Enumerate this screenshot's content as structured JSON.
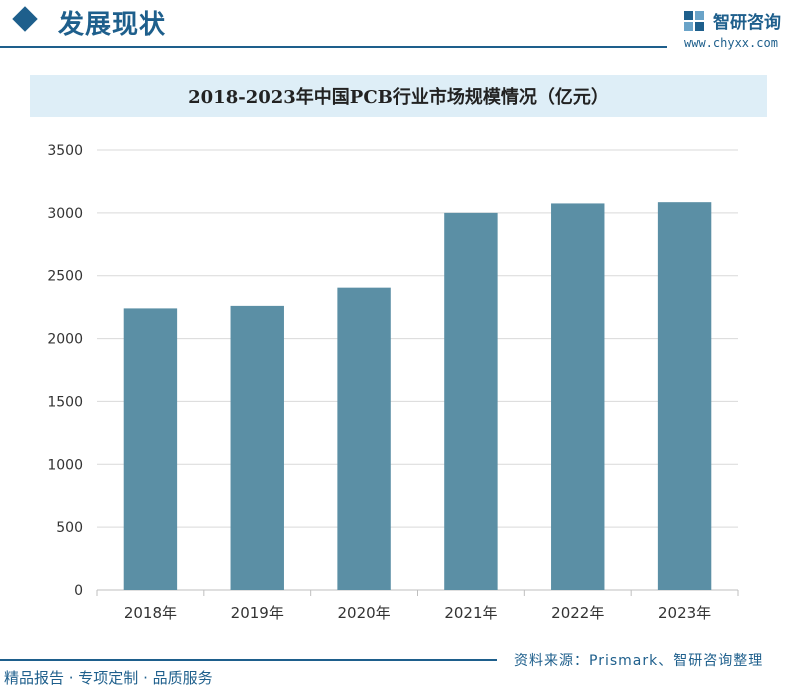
{
  "header": {
    "section_title": "发展现状",
    "brand_name": "智研咨询",
    "brand_url": "www.chyxx.com"
  },
  "chart_data": {
    "type": "bar",
    "title": "2018-2023年中国PCB行业市场规模情况（亿元）",
    "categories": [
      "2018年",
      "2019年",
      "2020年",
      "2021年",
      "2022年",
      "2023年"
    ],
    "values": [
      2240,
      2260,
      2405,
      3000,
      3075,
      3085
    ],
    "ylim": [
      0,
      3500
    ],
    "yticks": [
      0,
      500,
      1000,
      1500,
      2000,
      2500,
      3000,
      3500
    ],
    "grid": true,
    "bar_color": "#5b8fa5"
  },
  "footer": {
    "left": "精品报告 · 专项定制 · 品质服务",
    "source": "资料来源：Prismark、智研咨询整理"
  },
  "colors": {
    "brand": "#1e5f8c",
    "title_band": "#deeef7",
    "grid": "#d9d9d9"
  }
}
